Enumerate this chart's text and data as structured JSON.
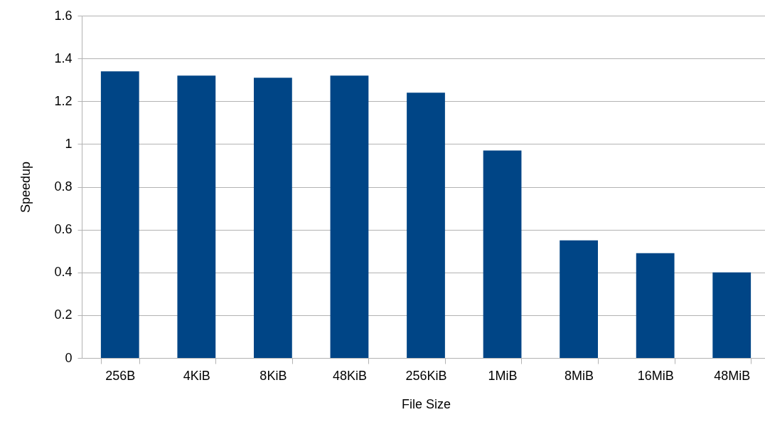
{
  "chart_data": {
    "type": "bar",
    "xlabel": "File Size",
    "ylabel": "Speedup",
    "categories": [
      "256B",
      "4KiB",
      "8KiB",
      "48KiB",
      "256KiB",
      "1MiB",
      "8MiB",
      "16MiB",
      "48MiB"
    ],
    "values": [
      1.34,
      1.32,
      1.31,
      1.32,
      1.24,
      0.97,
      0.55,
      0.49,
      0.4
    ],
    "color": "#004586",
    "ylim": [
      0,
      1.6
    ],
    "yticks": [
      0,
      0.2,
      0.4,
      0.6,
      0.8,
      1,
      1.2,
      1.4,
      1.6
    ],
    "grid": "y"
  }
}
